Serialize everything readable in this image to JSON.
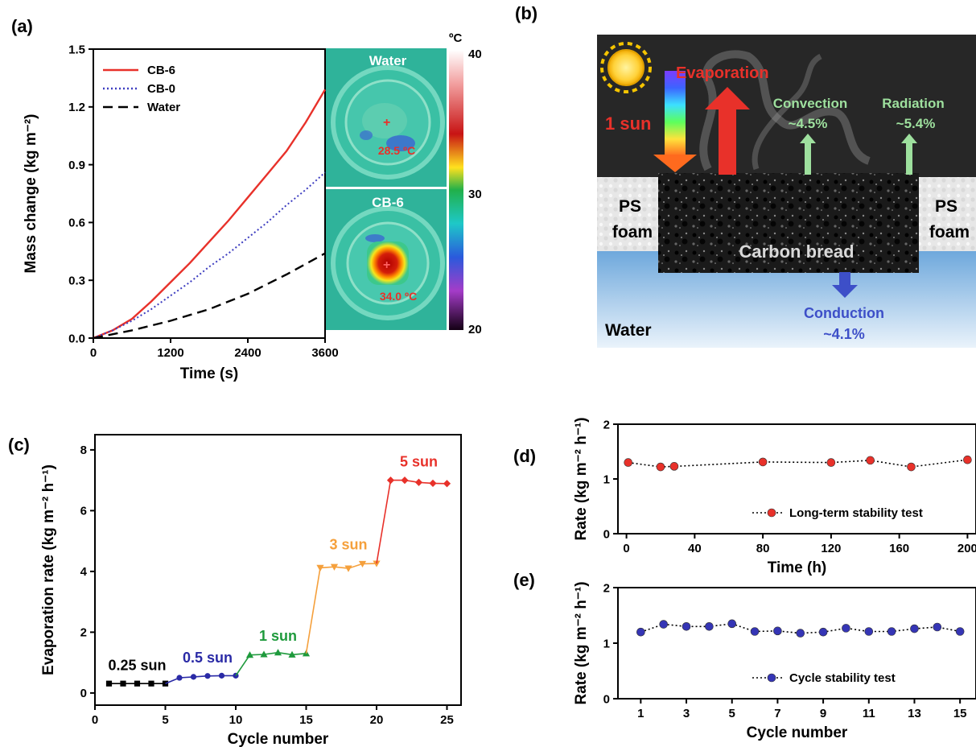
{
  "panels": {
    "a": "(a)",
    "b": "(b)",
    "c": "(c)",
    "d": "(d)",
    "e": "(e)"
  },
  "chart_data": [
    {
      "id": "a",
      "type": "line",
      "xlabel": "Time (s)",
      "ylabel": "Mass change (kg m⁻²)",
      "xlim": [
        0,
        3600
      ],
      "ylim": [
        0,
        1.5
      ],
      "xticks": [
        0,
        1200,
        2400,
        3600
      ],
      "yticks": [
        0.0,
        0.3,
        0.6,
        0.9,
        1.2,
        1.5
      ],
      "ytick_labels": [
        "0.0",
        "0.3",
        "0.6",
        "0.9",
        "1.2",
        "1.5"
      ],
      "legend_position": "top-left",
      "series": [
        {
          "name": "CB-6",
          "color": "#e8312a",
          "dash": "solid",
          "x": [
            0,
            300,
            600,
            900,
            1200,
            1500,
            1800,
            2100,
            2400,
            2700,
            3000,
            3300,
            3600
          ],
          "y": [
            0,
            0.04,
            0.1,
            0.19,
            0.29,
            0.39,
            0.5,
            0.61,
            0.73,
            0.85,
            0.97,
            1.12,
            1.29
          ]
        },
        {
          "name": "CB-0",
          "color": "#3d3dc0",
          "dash": "dotted",
          "x": [
            0,
            300,
            600,
            900,
            1200,
            1500,
            1800,
            2100,
            2400,
            2700,
            3000,
            3300,
            3600
          ],
          "y": [
            0,
            0.04,
            0.09,
            0.15,
            0.22,
            0.29,
            0.37,
            0.44,
            0.52,
            0.6,
            0.69,
            0.77,
            0.86
          ]
        },
        {
          "name": "Water",
          "color": "#000000",
          "dash": "dashed",
          "x": [
            0,
            600,
            1200,
            1800,
            2400,
            3000,
            3600
          ],
          "y": [
            0,
            0.04,
            0.09,
            0.15,
            0.23,
            0.33,
            0.44
          ]
        }
      ],
      "thermal_images": [
        {
          "label": "Water",
          "temperature": "28.5 ºC"
        },
        {
          "label": "CB-6",
          "temperature": "34.0 ºC"
        }
      ],
      "colorbar": {
        "unit": "ºC",
        "ticks": [
          "40",
          "30",
          "20"
        ]
      }
    },
    {
      "id": "b",
      "type": "diagram",
      "labels": {
        "evaporation": "Evaporation",
        "sun": "1 sun",
        "convection": "Convection",
        "convection_pct": "~4.5%",
        "radiation": "Radiation",
        "radiation_pct": "~5.4%",
        "ps_foam_left_1": "PS",
        "ps_foam_left_2": "foam",
        "ps_foam_right_1": "PS",
        "ps_foam_right_2": "foam",
        "carbon": "Carbon bread",
        "conduction": "Conduction",
        "conduction_pct": "~4.1%",
        "water": "Water"
      }
    },
    {
      "id": "c",
      "type": "line",
      "xlabel": "Cycle number",
      "ylabel": "Evaporation rate (kg m⁻² h⁻¹)",
      "xlim": [
        0,
        26
      ],
      "ylim": [
        -0.4,
        8.5
      ],
      "xticks": [
        0,
        5,
        10,
        15,
        20,
        25
      ],
      "yticks": [
        0,
        2,
        4,
        6,
        8
      ],
      "series": [
        {
          "name": "0.25 sun",
          "color": "#000000",
          "marker": "square",
          "x": [
            1,
            2,
            3,
            4,
            5
          ],
          "y": [
            0.31,
            0.31,
            0.31,
            0.31,
            0.31
          ]
        },
        {
          "name": "0.5 sun",
          "color": "#2a2aa6",
          "marker": "circle",
          "x": [
            5,
            6,
            7,
            8,
            9,
            10
          ],
          "y": [
            0.31,
            0.5,
            0.53,
            0.56,
            0.57,
            0.57
          ]
        },
        {
          "name": "1 sun",
          "color": "#1e9a3c",
          "marker": "triangle-up",
          "x": [
            10,
            11,
            12,
            13,
            14,
            15
          ],
          "y": [
            0.57,
            1.25,
            1.27,
            1.33,
            1.26,
            1.3
          ]
        },
        {
          "name": "3 sun",
          "color": "#f5a03c",
          "marker": "triangle-down",
          "x": [
            15,
            16,
            17,
            18,
            19,
            20
          ],
          "y": [
            1.3,
            4.12,
            4.15,
            4.1,
            4.25,
            4.26
          ]
        },
        {
          "name": "5 sun",
          "color": "#e8312a",
          "marker": "diamond",
          "x": [
            20,
            21,
            22,
            23,
            24,
            25
          ],
          "y": [
            4.26,
            7.0,
            7.0,
            6.93,
            6.9,
            6.89
          ]
        }
      ]
    },
    {
      "id": "d",
      "type": "scatter",
      "xlabel": "Time (h)",
      "ylabel": "Rate (kg m⁻² h⁻¹)",
      "xlim": [
        -5,
        205
      ],
      "ylim": [
        0,
        2
      ],
      "xticks": [
        0,
        40,
        80,
        120,
        160,
        200
      ],
      "yticks": [
        0,
        1,
        2
      ],
      "legend_position": "bottom-right",
      "series": [
        {
          "name": "Long-term stability test",
          "color": "#e8312a",
          "x": [
            1,
            20,
            28,
            80,
            120,
            143,
            167,
            200
          ],
          "y": [
            1.3,
            1.22,
            1.23,
            1.31,
            1.3,
            1.34,
            1.22,
            1.35
          ]
        }
      ]
    },
    {
      "id": "e",
      "type": "scatter",
      "xlabel": "Cycle number",
      "ylabel": "Rate (kg m⁻² h⁻¹)",
      "xlim": [
        0,
        15.7
      ],
      "ylim": [
        0,
        2
      ],
      "xticks": [
        1,
        3,
        5,
        7,
        9,
        11,
        13,
        15
      ],
      "yticks": [
        0,
        1,
        2
      ],
      "legend_position": "bottom-right",
      "series": [
        {
          "name": "Cycle stability test",
          "color": "#3535b5",
          "x": [
            1,
            2,
            3,
            4,
            5,
            6,
            7,
            8,
            9,
            10,
            11,
            12,
            13,
            14,
            15
          ],
          "y": [
            1.2,
            1.34,
            1.3,
            1.3,
            1.35,
            1.21,
            1.22,
            1.18,
            1.2,
            1.27,
            1.21,
            1.21,
            1.26,
            1.29,
            1.21
          ]
        }
      ]
    }
  ]
}
